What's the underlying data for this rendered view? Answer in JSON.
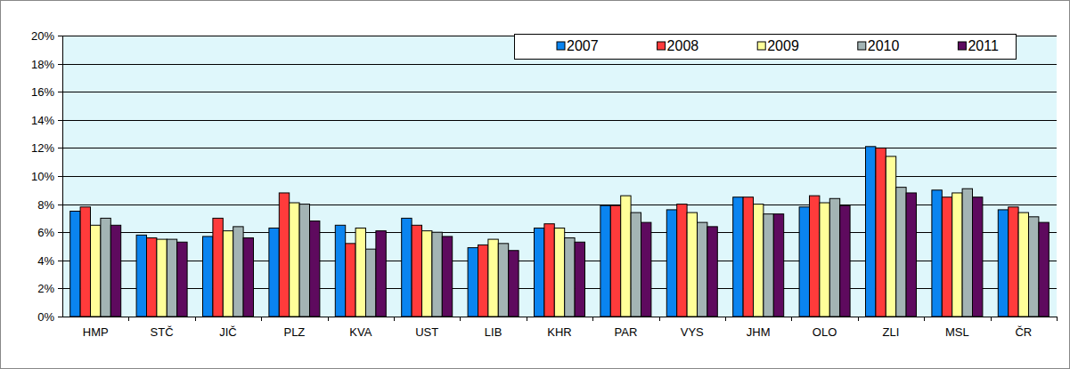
{
  "chart_data": {
    "type": "bar",
    "categories": [
      "HMP",
      "STČ",
      "JIČ",
      "PLZ",
      "KVA",
      "UST",
      "LIB",
      "KHR",
      "PAR",
      "VYS",
      "JHM",
      "OLO",
      "ZLI",
      "MSL",
      "ČR"
    ],
    "series": [
      {
        "name": "2007",
        "color": "#0a84f0",
        "values": [
          7.5,
          5.8,
          5.7,
          6.3,
          6.5,
          7.0,
          4.9,
          6.3,
          7.9,
          7.6,
          8.5,
          7.8,
          12.1,
          9.0,
          7.6
        ]
      },
      {
        "name": "2008",
        "color": "#ff3b3b",
        "values": [
          7.8,
          5.6,
          7.0,
          8.8,
          5.2,
          6.5,
          5.1,
          6.6,
          7.9,
          8.0,
          8.5,
          8.6,
          12.0,
          8.5,
          7.8
        ]
      },
      {
        "name": "2009",
        "color": "#ffff99",
        "values": [
          6.5,
          5.5,
          6.1,
          8.1,
          6.3,
          6.1,
          5.5,
          6.3,
          8.6,
          7.4,
          8.0,
          8.1,
          11.4,
          8.8,
          7.4
        ]
      },
      {
        "name": "2010",
        "color": "#a3b4b4",
        "values": [
          7.0,
          5.5,
          6.4,
          8.0,
          4.8,
          6.0,
          5.2,
          5.6,
          7.4,
          6.7,
          7.3,
          8.4,
          9.2,
          9.1,
          7.1
        ]
      },
      {
        "name": "2011",
        "color": "#5e0a5e",
        "values": [
          6.5,
          5.3,
          5.6,
          6.8,
          6.1,
          5.7,
          4.7,
          5.3,
          6.7,
          6.4,
          7.3,
          7.9,
          8.8,
          8.5,
          6.7
        ]
      }
    ],
    "ylim": [
      0,
      20
    ],
    "yticks": [
      {
        "value": 0,
        "label": "0%"
      },
      {
        "value": 2,
        "label": "2%"
      },
      {
        "value": 4,
        "label": "4%"
      },
      {
        "value": 6,
        "label": "6%"
      },
      {
        "value": 8,
        "label": "8%"
      },
      {
        "value": 10,
        "label": "10%"
      },
      {
        "value": 12,
        "label": "12%"
      },
      {
        "value": 14,
        "label": "14%"
      },
      {
        "value": 16,
        "label": "16%"
      },
      {
        "value": 18,
        "label": "18%"
      },
      {
        "value": 20,
        "label": "20%"
      }
    ],
    "grid": true,
    "legend": "top-right"
  }
}
